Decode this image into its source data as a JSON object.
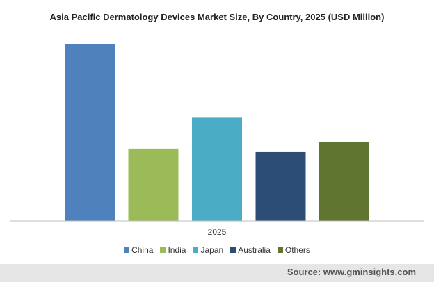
{
  "chart_data": {
    "type": "bar",
    "title": "Asia Pacific Dermatology Devices Market Size, By Country, 2025 (USD Million)",
    "categories": [
      "2025"
    ],
    "series": [
      {
        "name": "China",
        "values": [
          100
        ],
        "color": "#4f81bd"
      },
      {
        "name": "India",
        "values": [
          41
        ],
        "color": "#9bbb59"
      },
      {
        "name": "Japan",
        "values": [
          58.5
        ],
        "color": "#4bacc6"
      },
      {
        "name": "Australia",
        "values": [
          39
        ],
        "color": "#2c4d75"
      },
      {
        "name": "Others",
        "values": [
          44.5
        ],
        "color": "#5f7530"
      }
    ],
    "ylim": [
      0,
      100
    ],
    "grid": false,
    "legend": "bottom"
  },
  "footer": {
    "source": "Source: www.gminsights.com"
  }
}
